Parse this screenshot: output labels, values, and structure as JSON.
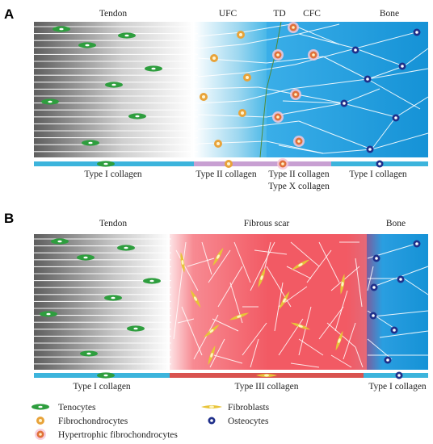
{
  "panel_a": {
    "letter": "A",
    "regions": {
      "tendon": "Tendon",
      "ufc": "UFC",
      "td": "TD",
      "cfc": "CFC",
      "bone": "Bone"
    },
    "band_labels": {
      "tendon": "Type I collagen",
      "ufc": "Type II collagen",
      "cfc_line1": "Type II collagen",
      "cfc_line2": "Type X collagen",
      "bone": "Type I collagen"
    },
    "colors": {
      "tendon_band": "#3cb4dc",
      "ufc_band": "#c8a0d2",
      "cfc_band": "#c8a0d2",
      "bone_band": "#3cb4dc",
      "bone_bg": "#1aa3e0",
      "tidemark": "#4f8a3a"
    }
  },
  "panel_b": {
    "letter": "B",
    "regions": {
      "tendon": "Tendon",
      "scar": "Fibrous scar",
      "bone": "Bone"
    },
    "band_labels": {
      "tendon": "Type I collagen",
      "scar": "Type III collagen",
      "bone": "Type I collagen"
    },
    "colors": {
      "tendon_band": "#3cb4dc",
      "scar_band": "#d9534f",
      "bone_band": "#3cb4dc",
      "scar_bg": "#f0606a",
      "bone_bg": "#1aa3e0"
    }
  },
  "legend": {
    "tenocytes": "Tenocytes",
    "fibrochondrocytes": "Fibrochondrocytes",
    "hypertrophic": "Hypertrophic fibrochondrocytes",
    "fibroblasts": "Fibroblasts",
    "osteocytes": "Osteocytes"
  },
  "icon_colors": {
    "tenocyte": "#2e9e3e",
    "fibrochondrocyte": "#e8a33a",
    "hypertrophic": "#e0713a",
    "fibroblast": "#e8c43a",
    "osteocyte": "#1f2f8a"
  }
}
